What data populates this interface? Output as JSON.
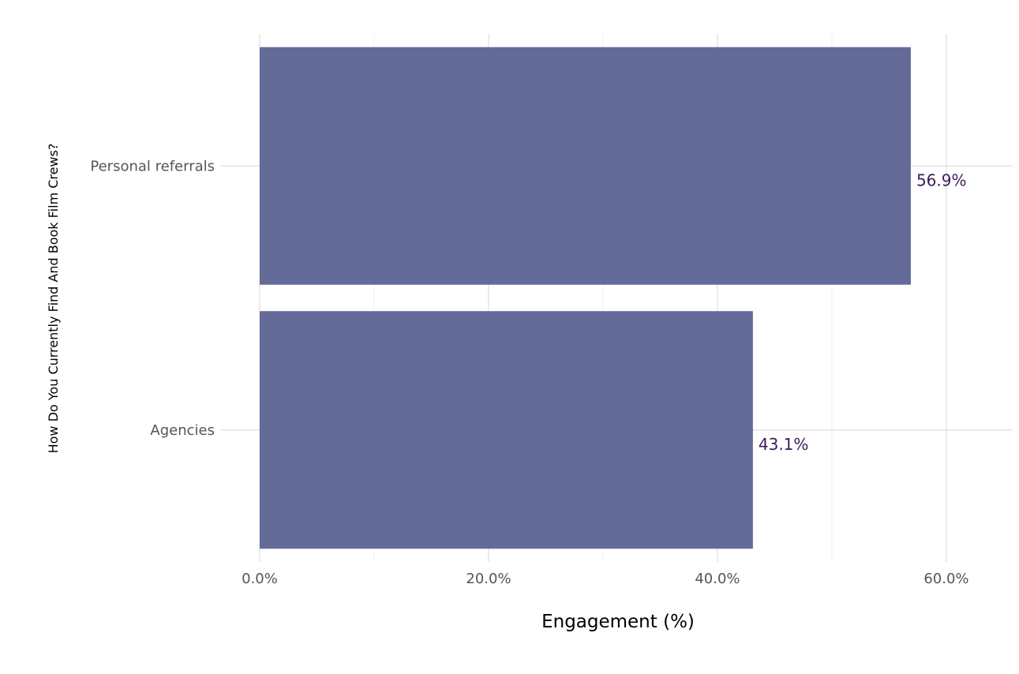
{
  "chart_data": {
    "type": "bar",
    "orientation": "horizontal",
    "categories": [
      "Personal referrals",
      "Agencies"
    ],
    "values": [
      56.9,
      43.1
    ],
    "value_labels": [
      "56.9%",
      "43.1%"
    ],
    "title": "",
    "xlabel": "Engagement (%)",
    "ylabel": "How Do You Currently Find And Book Film Crews?",
    "xlim": [
      0,
      65.8
    ],
    "x_ticks": [
      0,
      20,
      40,
      60
    ],
    "x_tick_labels": [
      "0.0%",
      "20.0%",
      "40.0%",
      "60.0%"
    ],
    "grid": true,
    "legend": "none",
    "colors": {
      "bar": "#656b99",
      "data_label": "#3d1a5c",
      "grid_major": "#dedede",
      "grid_minor": "#f0f0f0"
    }
  }
}
